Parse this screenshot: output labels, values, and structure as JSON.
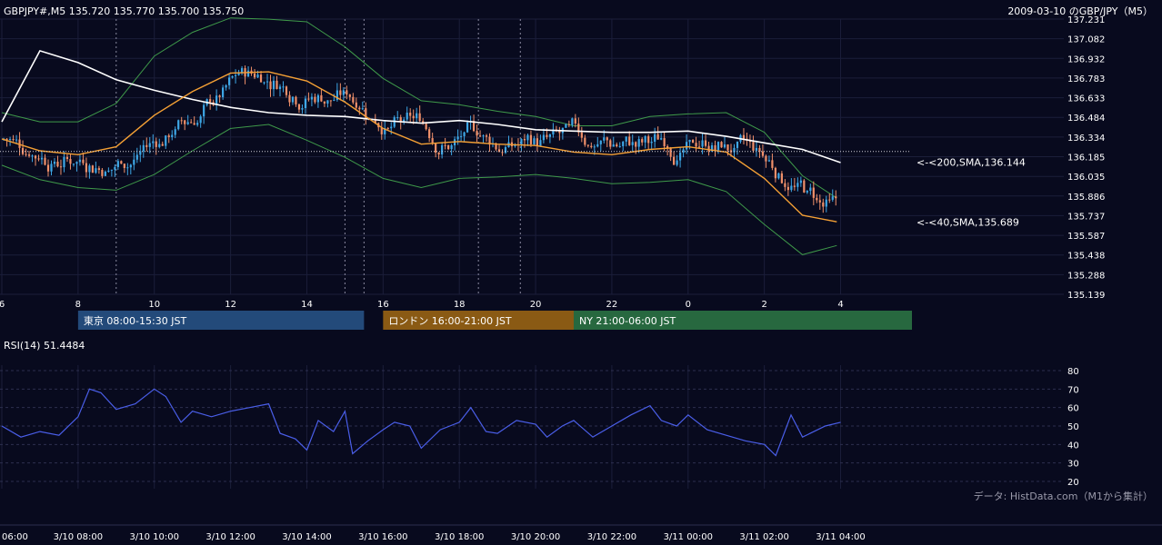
{
  "header": {
    "symbol_line": "GBPJPY#,M5 135.720 135.770 135.700 135.750",
    "title_right": "2009-03-10 のGBP/JPY（M5）"
  },
  "colors": {
    "background": "#080a1e",
    "bull": "#3ea7e6",
    "bear": "#f0906a",
    "sma40": "#f4a035",
    "sma200": "#ffffff",
    "bollinger": "#3f9a4a",
    "rsi": "#4a5ee8",
    "grid": "#1b1e3a",
    "session_tokyo": "#234a7a",
    "session_london": "#8a5a14",
    "session_ny": "#27683f"
  },
  "chart_data": [
    {
      "type": "candlestick",
      "title": "GBPJPY#,M5 135.720 135.770 135.700 135.750",
      "ylim": [
        135.139,
        137.231
      ],
      "y_ticks": [
        "137.231",
        "137.082",
        "136.932",
        "136.783",
        "136.633",
        "136.484",
        "136.334",
        "136.185",
        "136.035",
        "135.886",
        "135.737",
        "135.587",
        "135.438",
        "135.288",
        "135.139"
      ],
      "x_ticks_hours": [
        "6",
        "8",
        "10",
        "12",
        "14",
        "16",
        "18",
        "20",
        "22",
        "0",
        "2",
        "4"
      ],
      "last": {
        "open": 135.72,
        "high": 135.77,
        "low": 135.7,
        "close": 135.75
      },
      "indicators": [
        {
          "name": "SMA200",
          "label": "<-<200,SMA,136.144",
          "last": 136.144,
          "points": [
            [
              6,
              136.45
            ],
            [
              7,
              136.99
            ],
            [
              8,
              136.9
            ],
            [
              9,
              136.77
            ],
            [
              10,
              136.69
            ],
            [
              11,
              136.62
            ],
            [
              12,
              136.56
            ],
            [
              13,
              136.52
            ],
            [
              14,
              136.5
            ],
            [
              15,
              136.49
            ],
            [
              16,
              136.46
            ],
            [
              17,
              136.44
            ],
            [
              18,
              136.46
            ],
            [
              19,
              136.43
            ],
            [
              20,
              136.39
            ],
            [
              21,
              136.38
            ],
            [
              22,
              136.37
            ],
            [
              23,
              136.37
            ],
            [
              24,
              136.38
            ],
            [
              25,
              136.34
            ],
            [
              26,
              136.29
            ],
            [
              27,
              136.24
            ],
            [
              28,
              136.14
            ]
          ]
        },
        {
          "name": "SMA40",
          "label": "<-<40,SMA,135.689",
          "last": 135.689,
          "points": [
            [
              6,
              136.32
            ],
            [
              7,
              136.23
            ],
            [
              8,
              136.2
            ],
            [
              9,
              136.26
            ],
            [
              10,
              136.5
            ],
            [
              11,
              136.68
            ],
            [
              12,
              136.82
            ],
            [
              13,
              136.83
            ],
            [
              14,
              136.76
            ],
            [
              15,
              136.6
            ],
            [
              16,
              136.4
            ],
            [
              17,
              136.28
            ],
            [
              18,
              136.3
            ],
            [
              19,
              136.28
            ],
            [
              20,
              136.27
            ],
            [
              21,
              136.22
            ],
            [
              22,
              136.2
            ],
            [
              23,
              136.24
            ],
            [
              24,
              136.26
            ],
            [
              25,
              136.22
            ],
            [
              26,
              136.02
            ],
            [
              27,
              135.74
            ],
            [
              27.9,
              135.69
            ]
          ]
        }
      ],
      "reference_line": 136.225,
      "sessions": [
        {
          "name": "東京",
          "label": "東京 08:00-15:30 JST",
          "start": 8,
          "end": 15.5
        },
        {
          "name": "ロンドン",
          "label": "ロンドン 16:00-21:00 JST",
          "start": 16,
          "end": 21
        },
        {
          "name": "NY",
          "label": "NY 21:00-06:00 JST",
          "start": 21,
          "end": 30
        }
      ]
    },
    {
      "type": "line",
      "title": "RSI(14) 51.4484",
      "ylim": [
        20,
        80
      ],
      "y_ticks": [
        "80",
        "70",
        "60",
        "50",
        "40",
        "30",
        "20"
      ],
      "series": [
        {
          "name": "RSI(14)",
          "last": 51.4484,
          "points": [
            [
              6,
              50
            ],
            [
              6.5,
              44
            ],
            [
              7,
              47
            ],
            [
              7.5,
              45
            ],
            [
              8,
              55
            ],
            [
              8.3,
              70
            ],
            [
              8.6,
              68
            ],
            [
              9,
              59
            ],
            [
              9.5,
              62
            ],
            [
              10,
              70
            ],
            [
              10.3,
              66
            ],
            [
              10.7,
              52
            ],
            [
              11,
              58
            ],
            [
              11.5,
              55
            ],
            [
              12,
              58
            ],
            [
              12.5,
              60
            ],
            [
              13,
              62
            ],
            [
              13.3,
              46
            ],
            [
              13.7,
              43
            ],
            [
              14,
              37
            ],
            [
              14.3,
              53
            ],
            [
              14.7,
              47
            ],
            [
              15,
              58
            ],
            [
              15.2,
              35
            ],
            [
              15.6,
              42
            ],
            [
              16,
              48
            ],
            [
              16.3,
              52
            ],
            [
              16.7,
              50
            ],
            [
              17,
              38
            ],
            [
              17.5,
              48
            ],
            [
              18,
              52
            ],
            [
              18.3,
              60
            ],
            [
              18.7,
              47
            ],
            [
              19,
              46
            ],
            [
              19.5,
              53
            ],
            [
              20,
              51
            ],
            [
              20.3,
              44
            ],
            [
              20.7,
              50
            ],
            [
              21,
              53
            ],
            [
              21.5,
              44
            ],
            [
              22,
              50
            ],
            [
              22.5,
              56
            ],
            [
              23,
              61
            ],
            [
              23.3,
              53
            ],
            [
              23.7,
              50
            ],
            [
              24,
              56
            ],
            [
              24.5,
              48
            ],
            [
              25,
              45
            ],
            [
              25.5,
              42
            ],
            [
              26,
              40
            ],
            [
              26.3,
              34
            ],
            [
              26.7,
              56
            ],
            [
              27,
              44
            ],
            [
              27.3,
              47
            ],
            [
              27.6,
              50
            ],
            [
              28,
              52
            ]
          ]
        }
      ]
    }
  ],
  "footer": {
    "source": "データ: HistData.com（M1から集計）",
    "time_ticks": [
      "06:00",
      "3/10 08:00",
      "3/10 10:00",
      "3/10 12:00",
      "3/10 14:00",
      "3/10 16:00",
      "3/10 18:00",
      "3/10 20:00",
      "3/10 22:00",
      "3/11 00:00",
      "3/11 02:00",
      "3/11 04:00"
    ]
  }
}
